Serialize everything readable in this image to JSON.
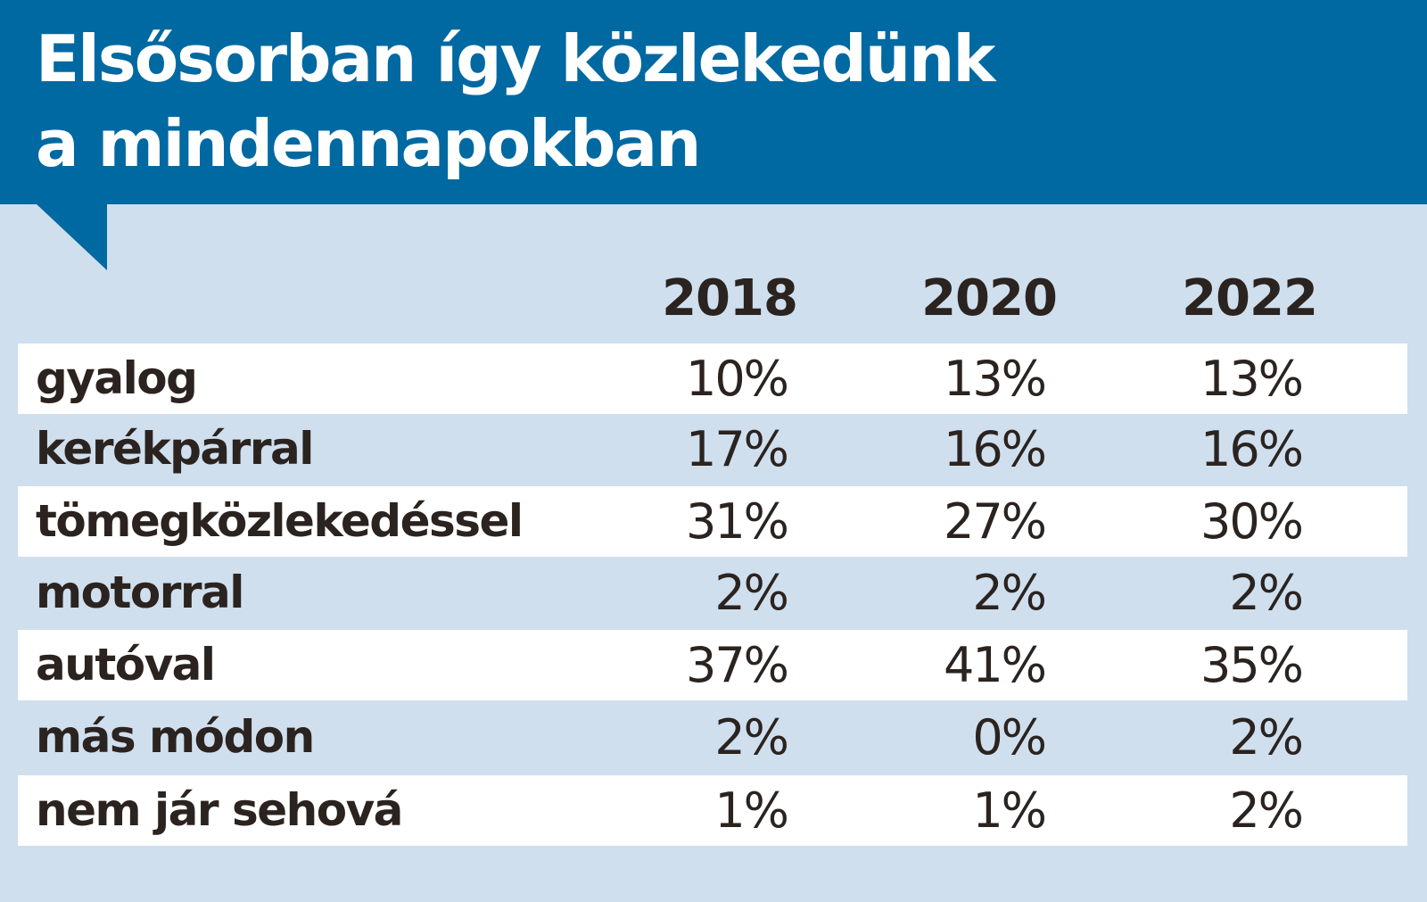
{
  "colors": {
    "header_bg": "#0169a1",
    "page_bg": "#cfdfee",
    "row_highlight": "#ffffff",
    "text": "#2b231f",
    "title_text": "#ffffff"
  },
  "chart_data": {
    "type": "table",
    "title": "Elsősorban így közlekedünk a mindennapokban",
    "title_lines": [
      "Elsősorban így közlekedünk",
      "a mindennapokban"
    ],
    "columns": [
      "2018",
      "2020",
      "2022"
    ],
    "rows": [
      {
        "label": "gyalog",
        "values": [
          "10%",
          "13%",
          "13%"
        ]
      },
      {
        "label": "kerékpárral",
        "values": [
          "17%",
          "16%",
          "16%"
        ]
      },
      {
        "label": "tömegközlekedéssel",
        "values": [
          "31%",
          "27%",
          "30%"
        ]
      },
      {
        "label": "motorral",
        "values": [
          "2%",
          "2%",
          "2%"
        ]
      },
      {
        "label": "autóval",
        "values": [
          "37%",
          "41%",
          "35%"
        ]
      },
      {
        "label": "más módon",
        "values": [
          "2%",
          "0%",
          "2%"
        ]
      },
      {
        "label": "nem jár sehová",
        "values": [
          "1%",
          "1%",
          "2%"
        ]
      }
    ]
  }
}
